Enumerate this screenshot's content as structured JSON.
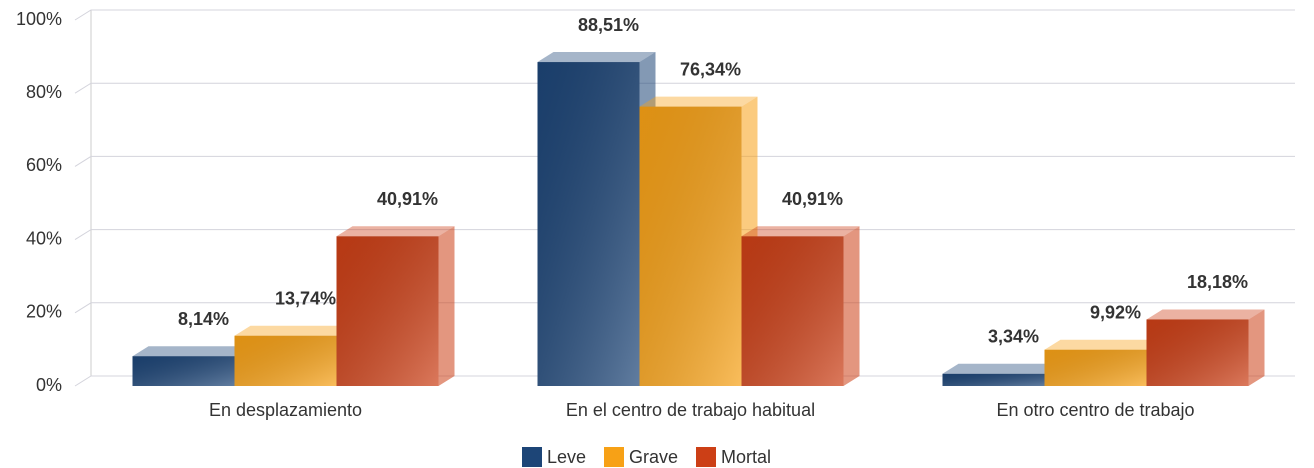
{
  "chart_data": {
    "type": "bar3d",
    "categories": [
      "En desplazamiento",
      "En el centro de trabajo habitual",
      "En otro centro de trabajo"
    ],
    "series": [
      {
        "name": "Leve",
        "color": "#1d4577",
        "values": [
          8.14,
          88.51,
          3.34
        ],
        "value_labels": [
          "8,14%",
          "88,51%",
          "3,34%"
        ]
      },
      {
        "name": "Grave",
        "color": "#f7a116",
        "values": [
          13.74,
          76.34,
          9.92
        ],
        "value_labels": [
          "13,74%",
          "76,34%",
          "9,92%"
        ]
      },
      {
        "name": "Mortal",
        "color": "#cc3f16",
        "values": [
          40.91,
          40.91,
          18.18
        ],
        "value_labels": [
          "40,91%",
          "40,91%",
          "18,18%"
        ]
      }
    ],
    "ylim": [
      0,
      100
    ],
    "yticks": [
      {
        "value": 0,
        "label": "0%"
      },
      {
        "value": 20,
        "label": "20%"
      },
      {
        "value": 40,
        "label": "40%"
      },
      {
        "value": 60,
        "label": "60%"
      },
      {
        "value": 80,
        "label": "80%"
      },
      {
        "value": 100,
        "label": "100%"
      }
    ],
    "grid": true,
    "legend": "bottom"
  }
}
